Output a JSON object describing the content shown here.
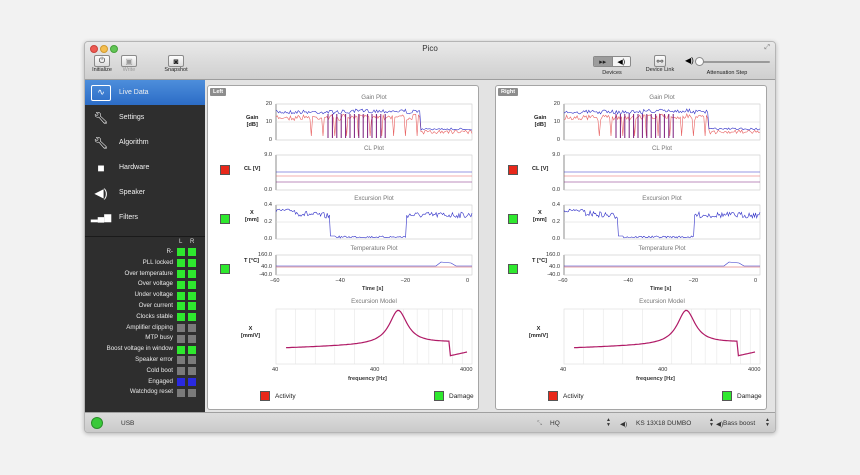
{
  "window": {
    "title": "Pico"
  },
  "toolbar": {
    "initialize": "Initialize",
    "write": "Write",
    "snapshot": "Snapshot",
    "devices": "Devices",
    "device_link": "Device Link",
    "attenuation": "Attenuation Step"
  },
  "sidebar": {
    "items": [
      {
        "label": "Live Data",
        "icon": "waveform-icon"
      },
      {
        "label": "Settings",
        "icon": "wrench-icon"
      },
      {
        "label": "Algorithm",
        "icon": "wrench-icon"
      },
      {
        "label": "Hardware",
        "icon": "box-icon"
      },
      {
        "label": "Speaker",
        "icon": "speaker-icon"
      },
      {
        "label": "Filters",
        "icon": "signal-bars-icon"
      }
    ]
  },
  "status": {
    "col_l": "L",
    "col_r": "R",
    "rows": [
      {
        "label": "R-",
        "l": "#2ee82e",
        "r": "#2ee82e"
      },
      {
        "label": "PLL locked",
        "l": "#2ee82e",
        "r": "#2ee82e"
      },
      {
        "label": "Over temperature",
        "l": "#2ee82e",
        "r": "#2ee82e"
      },
      {
        "label": "Over voltage",
        "l": "#2ee82e",
        "r": "#2ee82e"
      },
      {
        "label": "Under voltage",
        "l": "#2ee82e",
        "r": "#2ee82e"
      },
      {
        "label": "Over current",
        "l": "#2ee82e",
        "r": "#2ee82e"
      },
      {
        "label": "Clocks stable",
        "l": "#2ee82e",
        "r": "#2ee82e"
      },
      {
        "label": "Amplifier clipping",
        "l": "#7a7a7a",
        "r": "#7a7a7a"
      },
      {
        "label": "MTP busy",
        "l": "#7a7a7a",
        "r": "#7a7a7a"
      },
      {
        "label": "Boost voltage in window",
        "l": "#2ee82e",
        "r": "#2ee82e"
      },
      {
        "label": "Speaker error",
        "l": "#7a7a7a",
        "r": "#7a7a7a"
      },
      {
        "label": "Cold boot",
        "l": "#7a7a7a",
        "r": "#7a7a7a"
      },
      {
        "label": "Engaged",
        "l": "#2a2ae0",
        "r": "#2a2ae0"
      },
      {
        "label": "Watchdog reset",
        "l": "#7a7a7a",
        "r": "#7a7a7a"
      }
    ]
  },
  "panels": [
    {
      "tag": "Left",
      "gain_ind": "#e8281a",
      "cl_ind": "#e8281a",
      "exc_ind": "#2ee82e",
      "temp_ind": "#2ee82e"
    },
    {
      "tag": "Right",
      "gain_ind": "#e8281a",
      "cl_ind": "#e8281a",
      "exc_ind": "#2ee82e",
      "temp_ind": "#2ee82e"
    }
  ],
  "plots": {
    "gain": {
      "title": "Gain Plot",
      "ylabel": "Gain\n[dB]",
      "ticks": [
        "20",
        "10",
        "0"
      ]
    },
    "cl": {
      "title": "CL Plot",
      "ylabel": "CL [V]",
      "ticks": [
        "9.0",
        "0.0"
      ]
    },
    "excursion": {
      "title": "Excursion Plot",
      "ylabel": "X\n[mm]",
      "ticks": [
        "0.4",
        "0.2",
        "0.0"
      ]
    },
    "temperature": {
      "title": "Temperature Plot",
      "ylabel": "T [°C]",
      "ticks": [
        "160.0",
        "40.0",
        "-40.0"
      ]
    },
    "time_ticks": [
      "−60",
      "−40",
      "−20",
      "0"
    ],
    "time_label": "Time [s]",
    "model": {
      "title": "Excursion Model",
      "ylabel": "X\n[mm/V]",
      "xticks": [
        "40",
        "400",
        "4000"
      ],
      "xlabel": "frequency [Hz]"
    }
  },
  "legend": {
    "activity": "Activity",
    "damage": "Damage",
    "activity_color": "#e8281a",
    "damage_color": "#2ee82e"
  },
  "statusbar": {
    "usb": "USB",
    "quality": "HQ",
    "speaker": "KS 13X18 DUMBO",
    "bass": "Bass boost"
  }
}
